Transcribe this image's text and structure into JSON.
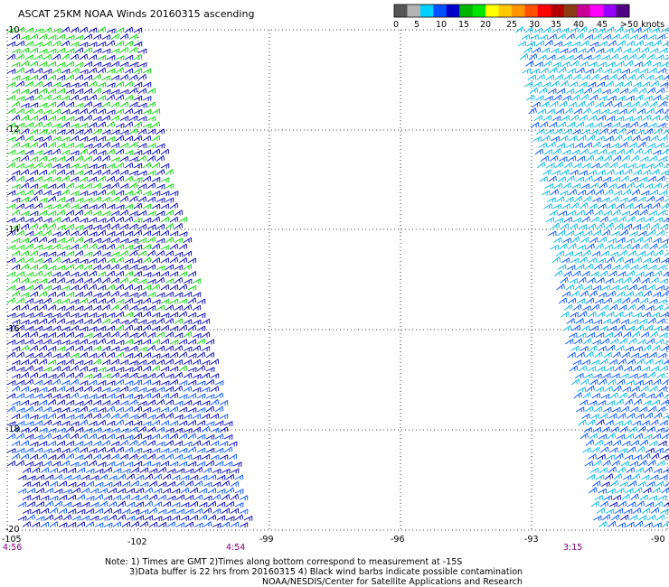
{
  "title": "ASCAT 25KM NOAA Winds 20160315 ascending",
  "colorbar": {
    "colors": [
      "#555555",
      "#b4b4b4",
      "#00d2ff",
      "#0050ff",
      "#0000c8",
      "#00b400",
      "#00e600",
      "#ffff00",
      "#ffc800",
      "#ff9600",
      "#ff5000",
      "#ff0000",
      "#b40000",
      "#8c3c14",
      "#c80096",
      "#ff00ff",
      "#9600ff",
      "#500082"
    ],
    "labels": [
      "0",
      "5",
      "10",
      "15",
      "20",
      "25",
      "30",
      "35",
      "40",
      "45",
      ">50 knots"
    ]
  },
  "map": {
    "lat_labels": [
      "-10",
      "-12",
      "-14",
      "-16",
      "-18",
      "-20"
    ],
    "lon_labels": [
      "-105",
      "-102",
      "-99",
      "-96",
      "-93",
      "-90"
    ],
    "time_labels": [
      "4:56",
      "4:54",
      "3:15"
    ]
  },
  "notes": {
    "line1": "Note: 1) Times are GMT 2)Times along bottom correspond to measurement at -15S",
    "line2": "3)Data buffer is 22 hrs from 20160315 4) Black wind barbs indicate possible contamination",
    "line3": "NOAA/NESDIS/Center for Satellite Applications and Research"
  },
  "barb_colors": {
    "green": "#00d200",
    "dark_blue": "#0000b4",
    "blue": "#0050ff",
    "cyan": "#00b4e6"
  }
}
